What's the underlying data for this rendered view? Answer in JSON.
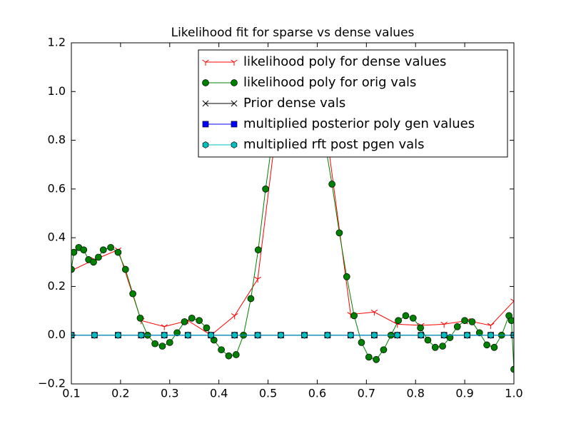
{
  "chart_data": {
    "type": "line",
    "title": "Likelihood fit for sparse vs dense values",
    "xlim": [
      0.1,
      1.0
    ],
    "ylim": [
      -0.2,
      1.2
    ],
    "xticks": [
      0.1,
      0.2,
      0.3,
      0.4,
      0.5,
      0.6,
      0.7,
      0.8,
      0.9,
      {
        "value": 1.0,
        "label": "1.0"
      }
    ],
    "yticks": [
      {
        "value": -0.2,
        "label": "−0.2"
      },
      {
        "value": 0,
        "label": "0.0"
      },
      0.2,
      0.4,
      0.6,
      0.8,
      {
        "value": 1.0,
        "label": "1.0"
      },
      1.2
    ],
    "legend": "upper right",
    "series": [
      {
        "name": "likelihood poly for dense values",
        "color": "#ff0000",
        "marker": "tri_down",
        "x": [
          0.1,
          0.147,
          0.195,
          0.242,
          0.289,
          0.337,
          0.384,
          0.432,
          0.479,
          0.526,
          0.574,
          0.621,
          0.668,
          0.716,
          0.763,
          0.811,
          0.858,
          0.905,
          0.953,
          1.0
        ],
        "values": [
          0.265,
          0.31,
          0.35,
          0.06,
          0.035,
          0.06,
          0.0,
          0.08,
          0.23,
          1.0,
          1.05,
          0.8,
          0.085,
          0.095,
          0.045,
          0.04,
          0.045,
          0.06,
          0.04,
          0.14
        ]
      },
      {
        "name": "likelihood poly for orig vals",
        "color": "#008000",
        "marker": "circle",
        "x": [
          0.1,
          0.105,
          0.115,
          0.125,
          0.135,
          0.145,
          0.155,
          0.165,
          0.18,
          0.195,
          0.21,
          0.225,
          0.24,
          0.255,
          0.27,
          0.285,
          0.3,
          0.315,
          0.33,
          0.345,
          0.36,
          0.375,
          0.39,
          0.405,
          0.42,
          0.435,
          0.45,
          0.465,
          0.48,
          0.495,
          0.51,
          0.525,
          0.54,
          0.555,
          0.57,
          0.585,
          0.6,
          0.615,
          0.63,
          0.645,
          0.66,
          0.675,
          0.69,
          0.705,
          0.72,
          0.735,
          0.75,
          0.765,
          0.78,
          0.795,
          0.81,
          0.825,
          0.84,
          0.855,
          0.87,
          0.885,
          0.9,
          0.915,
          0.93,
          0.945,
          0.96,
          0.975,
          0.99,
          0.995,
          1.0
        ],
        "values": [
          0.27,
          0.34,
          0.36,
          0.35,
          0.31,
          0.3,
          0.32,
          0.35,
          0.36,
          0.34,
          0.27,
          0.17,
          0.07,
          0.0,
          -0.035,
          -0.045,
          -0.03,
          0.01,
          0.055,
          0.07,
          0.06,
          0.03,
          -0.02,
          -0.06,
          -0.085,
          -0.08,
          0.0,
          0.15,
          0.35,
          0.6,
          0.82,
          1.0,
          1.1,
          1.15,
          1.13,
          1.05,
          0.92,
          0.8,
          0.62,
          0.42,
          0.24,
          0.08,
          -0.03,
          -0.09,
          -0.1,
          -0.06,
          0.0,
          0.06,
          0.08,
          0.07,
          0.03,
          -0.02,
          -0.05,
          -0.045,
          -0.01,
          0.035,
          0.06,
          0.055,
          0.01,
          -0.04,
          -0.05,
          0.0,
          0.08,
          0.06,
          -0.14
        ]
      },
      {
        "name": "Prior dense vals",
        "color": "#000000",
        "marker": "x",
        "x": [
          0.1,
          0.147,
          0.195,
          0.242,
          0.289,
          0.337,
          0.384,
          0.432,
          0.479,
          0.526,
          0.574,
          0.621,
          0.668,
          0.716,
          0.763,
          0.811,
          0.858,
          0.905,
          0.953,
          1.0
        ],
        "values": [
          0,
          0,
          0,
          0,
          0,
          0,
          0,
          0,
          0,
          0,
          0,
          0,
          0,
          0,
          0,
          0,
          0,
          0,
          0,
          0
        ]
      },
      {
        "name": "multiplied posterior poly gen values",
        "color": "#0000ff",
        "marker": "square",
        "x": [
          0.1,
          0.147,
          0.195,
          0.242,
          0.289,
          0.337,
          0.384,
          0.432,
          0.479,
          0.526,
          0.574,
          0.621,
          0.668,
          0.716,
          0.763,
          0.811,
          0.858,
          0.905,
          0.953,
          1.0
        ],
        "values": [
          0,
          0,
          0,
          0,
          0,
          0,
          0,
          0,
          0,
          0,
          0,
          0,
          0,
          0,
          0,
          0,
          0,
          0,
          0,
          0
        ]
      },
      {
        "name": "multiplied rft post pgen vals",
        "color": "#00bfbf",
        "marker": "hexagon",
        "x": [
          0.1,
          0.147,
          0.195,
          0.242,
          0.289,
          0.337,
          0.384,
          0.432,
          0.479,
          0.526,
          0.574,
          0.621,
          0.668,
          0.716,
          0.763,
          0.811,
          0.858,
          0.905,
          0.953,
          1.0
        ],
        "values": [
          0,
          0,
          0,
          0,
          0,
          0,
          0,
          0,
          0,
          0,
          0,
          0,
          0,
          0,
          0,
          0,
          0,
          0,
          0,
          0
        ]
      }
    ]
  }
}
